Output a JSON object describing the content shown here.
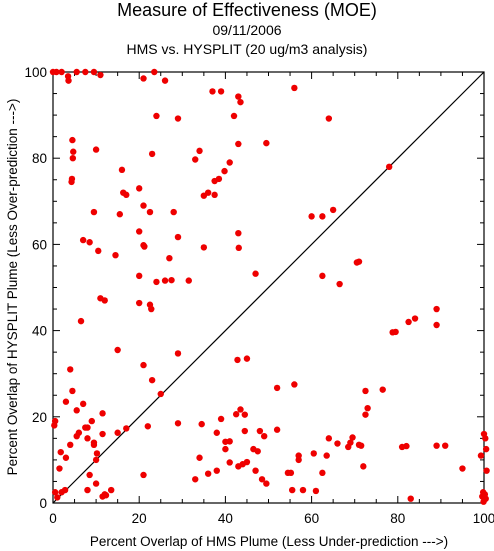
{
  "chart_data": {
    "type": "scatter",
    "title": "Measure of Effectiveness (MOE)",
    "subtitle": "09/11/2006",
    "subtitle2": "HMS vs. HYSPLIT  (20 ug/m3 analysis)",
    "xlabel": "Percent Overlap of HMS Plume (Less Under-prediction --->)",
    "ylabel": "Percent Overlap of HYSPLIT Plume (Less Over-prediction --->)",
    "xlim": [
      0,
      100
    ],
    "ylim": [
      0,
      100
    ],
    "xticks": [
      0,
      20,
      40,
      60,
      80,
      100
    ],
    "yticks": [
      0,
      20,
      40,
      60,
      80,
      100
    ],
    "reference_line": "y = x",
    "marker_color": "#ee0000",
    "points": [
      [
        0,
        100
      ],
      [
        0.8,
        100
      ],
      [
        2,
        100
      ],
      [
        3.5,
        99
      ],
      [
        3.6,
        98
      ],
      [
        5.5,
        100
      ],
      [
        7.5,
        100
      ],
      [
        9.5,
        100
      ],
      [
        11,
        99.3
      ],
      [
        21,
        98.5
      ],
      [
        23.5,
        100
      ],
      [
        26,
        98
      ],
      [
        37,
        95.5
      ],
      [
        39,
        95.5
      ],
      [
        43,
        94.3
      ],
      [
        43.5,
        93
      ],
      [
        56,
        96.3
      ],
      [
        24,
        89.8
      ],
      [
        29,
        89.2
      ],
      [
        42,
        89.8
      ],
      [
        64,
        89.2
      ],
      [
        4.5,
        84.2
      ],
      [
        4.7,
        81.5
      ],
      [
        4.6,
        80
      ],
      [
        4.4,
        75.2
      ],
      [
        4.3,
        74.5
      ],
      [
        10,
        82
      ],
      [
        23,
        81
      ],
      [
        33,
        79.7
      ],
      [
        34,
        81.7
      ],
      [
        43,
        83.3
      ],
      [
        49.5,
        83.5
      ],
      [
        41,
        79
      ],
      [
        39.8,
        77
      ],
      [
        38.5,
        75.2
      ],
      [
        37.5,
        74.7
      ],
      [
        36,
        72
      ],
      [
        37.5,
        71.5
      ],
      [
        35,
        71.3
      ],
      [
        16,
        77.3
      ],
      [
        16.3,
        72
      ],
      [
        17,
        71.5
      ],
      [
        20,
        73
      ],
      [
        15.5,
        67
      ],
      [
        21,
        69
      ],
      [
        22.5,
        67.5
      ],
      [
        28,
        67.5
      ],
      [
        60,
        66.5
      ],
      [
        62.5,
        66.5
      ],
      [
        65,
        68
      ],
      [
        78,
        78
      ],
      [
        9.5,
        67.5
      ],
      [
        7,
        61
      ],
      [
        8.5,
        60.5
      ],
      [
        10.5,
        58.5
      ],
      [
        14.5,
        57.5
      ],
      [
        20,
        63
      ],
      [
        21,
        59.8
      ],
      [
        21.2,
        59.5
      ],
      [
        29,
        61.7
      ],
      [
        35,
        59.3
      ],
      [
        43,
        62.6
      ],
      [
        43.1,
        59.2
      ],
      [
        24,
        51.3
      ],
      [
        27,
        56.8
      ],
      [
        27.5,
        51.7
      ],
      [
        20,
        52.7
      ],
      [
        31.5,
        51.6
      ],
      [
        47,
        53.2
      ],
      [
        62.5,
        52.7
      ],
      [
        66.5,
        50.8
      ],
      [
        70.5,
        55.8
      ],
      [
        71,
        56
      ],
      [
        11,
        47.5
      ],
      [
        12,
        47
      ],
      [
        20,
        46.4
      ],
      [
        22.5,
        46
      ],
      [
        22.8,
        45
      ],
      [
        26,
        51.6
      ],
      [
        6.5,
        42.2
      ],
      [
        78.8,
        39.6
      ],
      [
        79.5,
        39.7
      ],
      [
        82.5,
        42
      ],
      [
        84,
        42.8
      ],
      [
        89,
        45
      ],
      [
        89,
        41.3
      ],
      [
        15,
        35.5
      ],
      [
        29,
        34.7
      ],
      [
        42.8,
        33.2
      ],
      [
        45,
        33.5
      ],
      [
        4,
        31
      ],
      [
        21,
        32
      ],
      [
        23,
        28.5
      ],
      [
        4.5,
        26
      ],
      [
        25,
        25.3
      ],
      [
        52,
        26.7
      ],
      [
        56,
        27.5
      ],
      [
        72.5,
        26
      ],
      [
        76.5,
        26.3
      ],
      [
        0.5,
        19
      ],
      [
        0.3,
        18
      ],
      [
        3,
        23.5
      ],
      [
        5.5,
        21.5
      ],
      [
        7,
        23
      ],
      [
        9,
        19
      ],
      [
        8,
        17.5
      ],
      [
        6,
        16.3
      ],
      [
        7.5,
        17.5
      ],
      [
        4,
        13.5
      ],
      [
        5.5,
        15.5
      ],
      [
        8,
        15
      ],
      [
        9.5,
        14
      ],
      [
        11.5,
        20.8
      ],
      [
        11.5,
        16
      ],
      [
        15,
        16.3
      ],
      [
        17,
        17.3
      ],
      [
        22,
        17.8
      ],
      [
        29,
        18.5
      ],
      [
        3,
        10.5
      ],
      [
        1.8,
        11.8
      ],
      [
        1.5,
        8
      ],
      [
        9.5,
        13.5
      ],
      [
        10.2,
        11.5
      ],
      [
        10,
        10
      ],
      [
        8.5,
        6.5
      ],
      [
        34.5,
        18.3
      ],
      [
        38,
        16.3
      ],
      [
        39,
        19.5
      ],
      [
        40,
        14.2
      ],
      [
        41,
        14.3
      ],
      [
        42.5,
        20.6
      ],
      [
        43.5,
        21.7
      ],
      [
        44.5,
        20.5
      ],
      [
        44.5,
        16.7
      ],
      [
        48,
        16.7
      ],
      [
        49,
        15.5
      ],
      [
        41,
        9.4
      ],
      [
        43,
        8.5
      ],
      [
        44,
        9
      ],
      [
        45,
        9.5
      ],
      [
        40,
        12.5
      ],
      [
        36,
        6.8
      ],
      [
        38,
        7.5
      ],
      [
        34,
        10.5
      ],
      [
        33,
        5.5
      ],
      [
        21,
        6.5
      ],
      [
        47,
        7.5
      ],
      [
        46.5,
        12.5
      ],
      [
        47.5,
        12
      ],
      [
        48.5,
        5.5
      ],
      [
        49.5,
        4.5
      ],
      [
        54.5,
        7
      ],
      [
        55.2,
        7
      ],
      [
        57,
        10
      ],
      [
        57,
        11
      ],
      [
        60.5,
        11.5
      ],
      [
        63.5,
        11
      ],
      [
        64,
        15
      ],
      [
        66,
        13.8
      ],
      [
        68.5,
        13
      ],
      [
        69,
        14
      ],
      [
        69.5,
        15.2
      ],
      [
        71,
        13.5
      ],
      [
        71.5,
        13.3
      ],
      [
        72.5,
        20.5
      ],
      [
        73,
        22
      ],
      [
        62.5,
        7
      ],
      [
        55.5,
        3
      ],
      [
        58,
        3
      ],
      [
        61,
        2.8
      ],
      [
        72,
        8.5
      ],
      [
        81,
        13
      ],
      [
        82,
        13.2
      ],
      [
        89,
        13.3
      ],
      [
        91,
        13.3
      ],
      [
        95,
        8
      ],
      [
        100,
        16
      ],
      [
        100.3,
        15
      ],
      [
        100.5,
        12.5
      ],
      [
        99.3,
        11
      ],
      [
        100.6,
        7.5
      ],
      [
        99.8,
        2.5
      ],
      [
        100.2,
        2
      ],
      [
        99.6,
        1.5
      ],
      [
        100.4,
        1
      ],
      [
        99.9,
        0.3
      ],
      [
        83,
        1
      ],
      [
        0.5,
        2.5
      ],
      [
        1,
        1.3
      ],
      [
        2,
        2.5
      ],
      [
        2.8,
        3
      ],
      [
        8,
        3
      ],
      [
        10,
        4.5
      ],
      [
        12,
        2
      ],
      [
        13.5,
        3
      ],
      [
        11.5,
        1.5
      ],
      [
        12.3,
        1.8
      ],
      [
        52,
        17
      ]
    ]
  }
}
